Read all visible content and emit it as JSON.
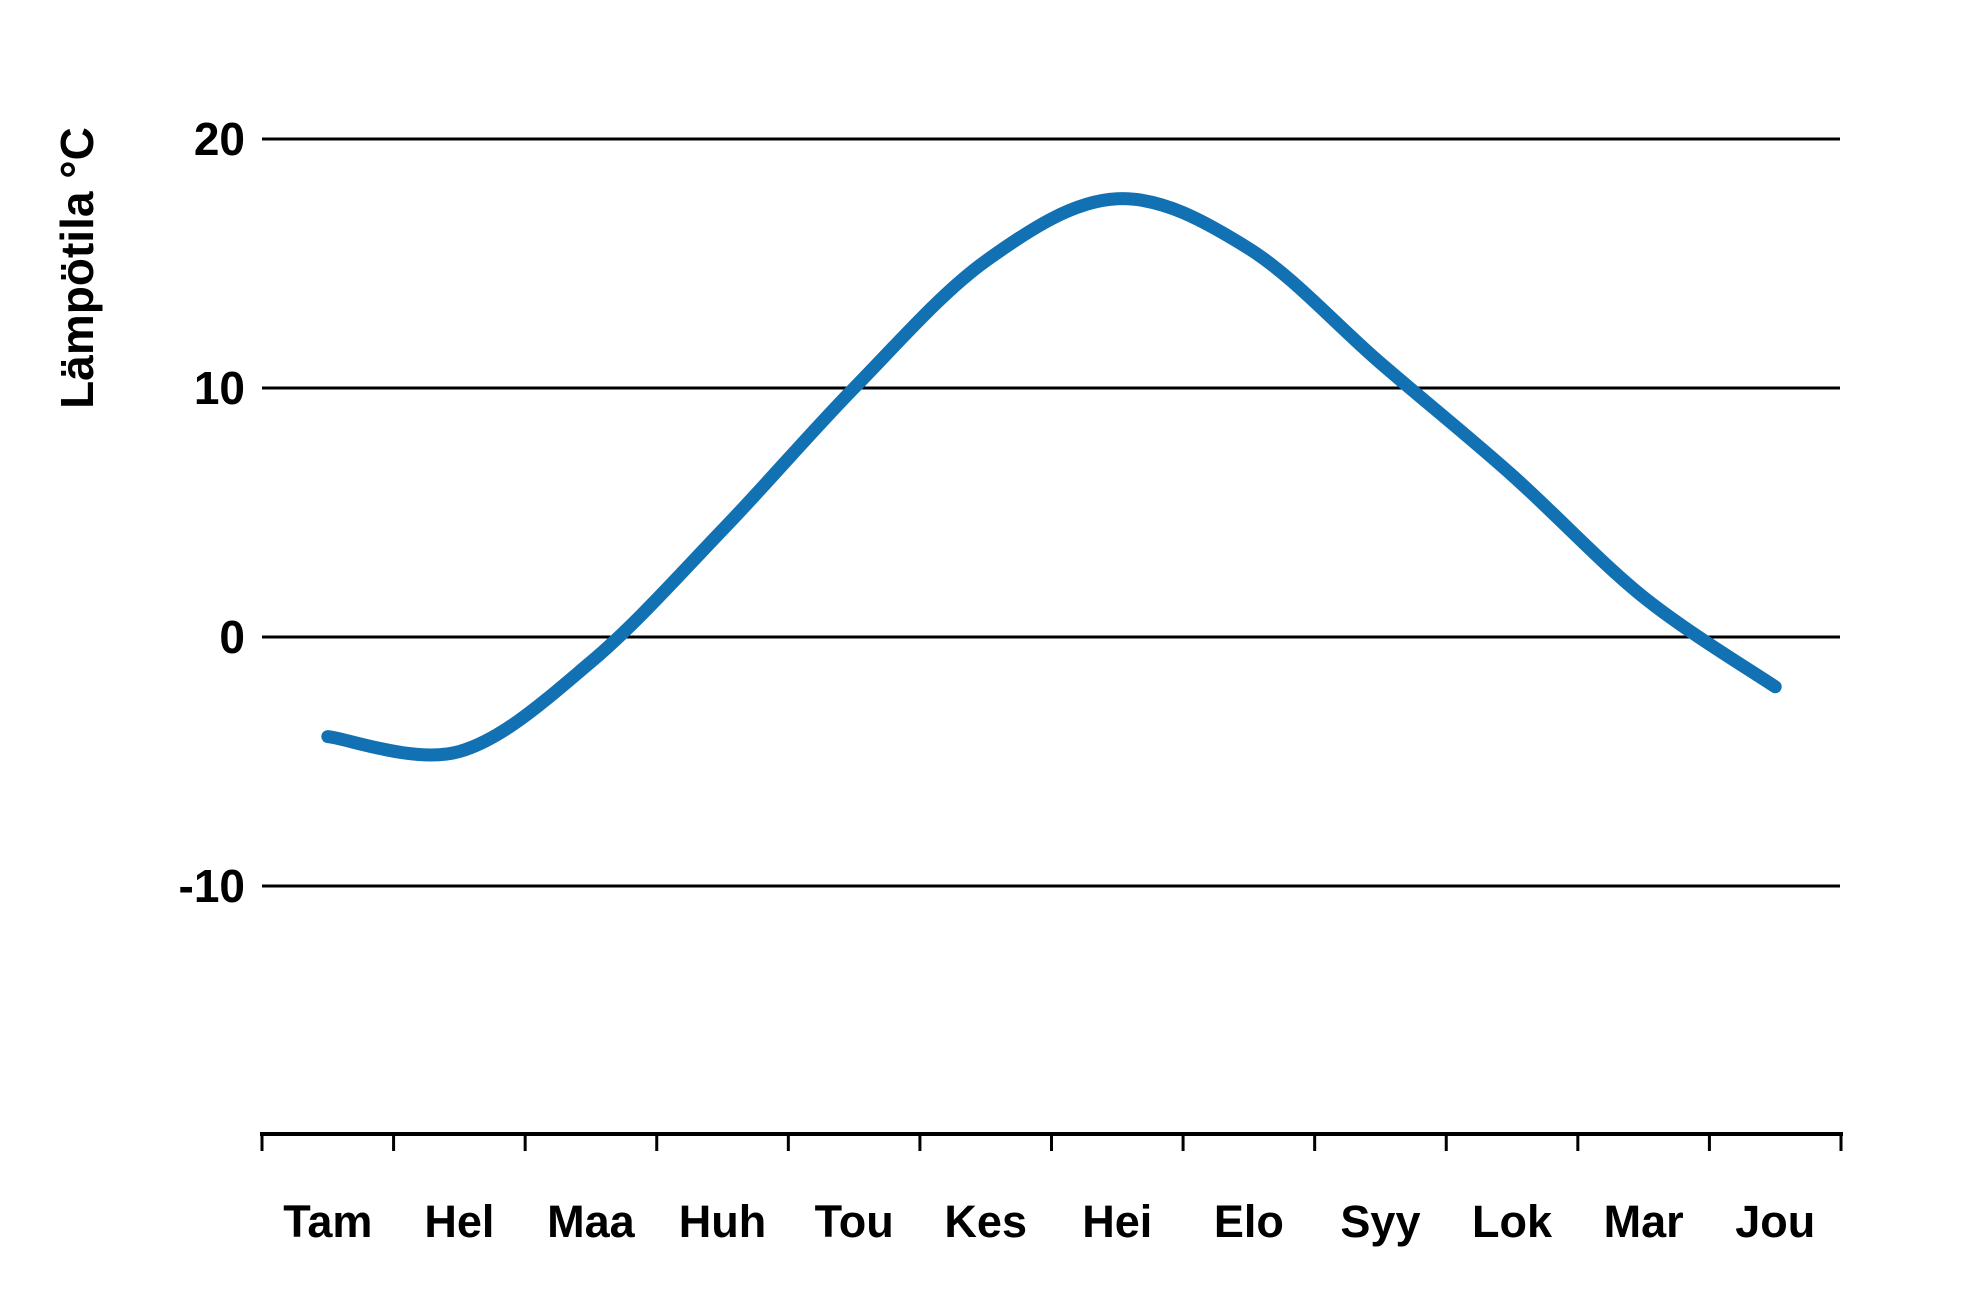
{
  "chart_data": {
    "type": "line",
    "ylabel": "Lämpötila °C",
    "categories": [
      "Tam",
      "Hel",
      "Maa",
      "Huh",
      "Tou",
      "Kes",
      "Hei",
      "Elo",
      "Syy",
      "Lok",
      "Mar",
      "Jou"
    ],
    "values": [
      -4.0,
      -4.6,
      -1.0,
      4.3,
      10.0,
      15.1,
      17.6,
      15.6,
      11.0,
      6.5,
      1.6,
      -2.0
    ],
    "yticks": [
      20,
      10,
      0,
      -10
    ],
    "ylim": [
      -20,
      22
    ],
    "grid": true,
    "legend": "none",
    "line_color": "#1171b3",
    "axis_color": "#000000",
    "background": "#ffffff"
  }
}
